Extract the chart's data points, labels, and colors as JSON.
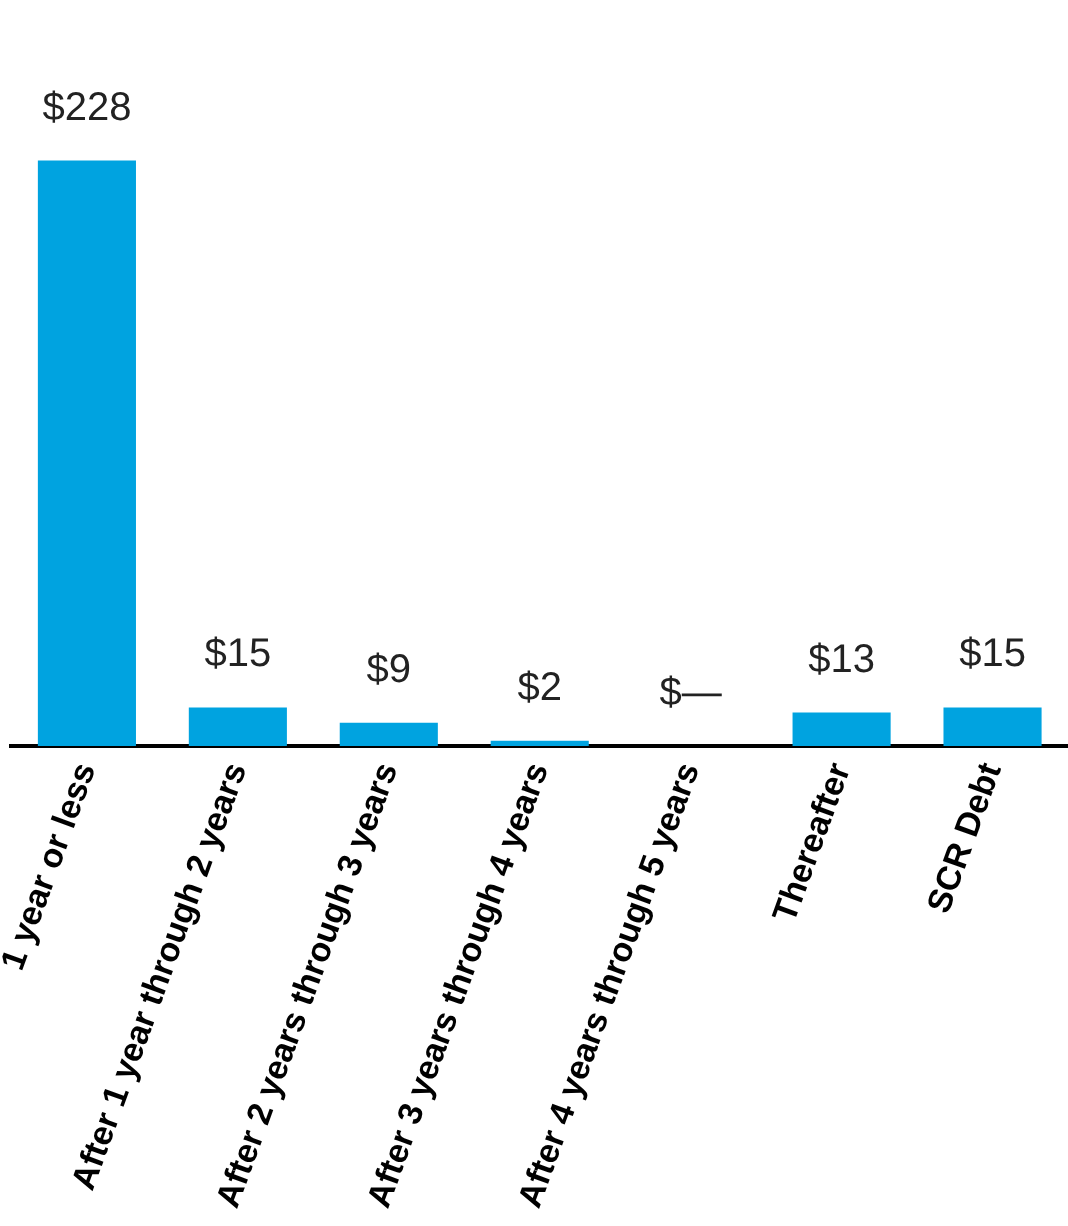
{
  "chart_data": {
    "type": "bar",
    "categories": [
      "1 year or less",
      "After 1 year through 2 years",
      "After 2 years through 3 years",
      "After 3 years through 4 years",
      "After 4 years through 5 years",
      "Thereafter",
      "SCR Debt"
    ],
    "values": [
      228,
      15,
      9,
      2,
      0,
      13,
      15
    ],
    "value_labels": [
      "$228",
      "$15",
      "$9",
      "$2",
      "$—",
      "$13",
      "$15"
    ],
    "color": "#00a3e0",
    "grid": false,
    "legend": false
  }
}
